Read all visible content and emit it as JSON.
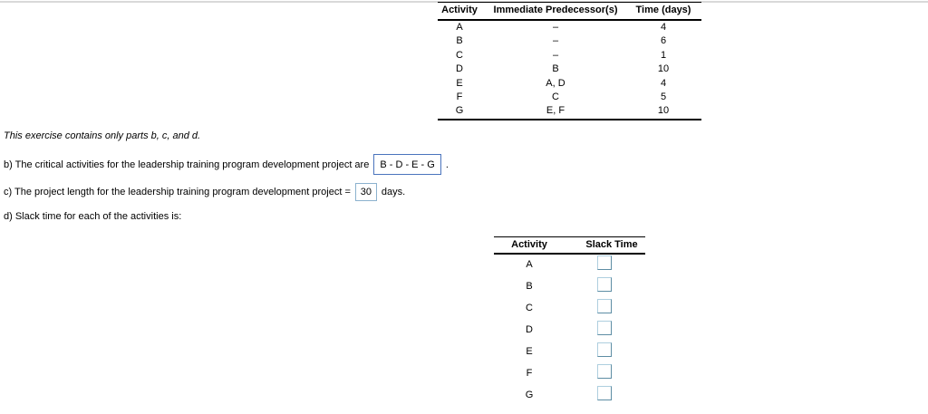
{
  "colors": {
    "page-top-line": "#d9d9d9",
    "answer-box-border": "#4a74bd",
    "value-box-border": "#8cb2ce",
    "slack-box-light": "#aecfdf",
    "slack-box-dark": "#5d8da4"
  },
  "note": {
    "text": "This exercise contains only parts b, c, and d."
  },
  "part_b": {
    "text": "b) The critical activities for the leadership training program development project are",
    "answer": "B - D - E - G",
    "suffix": "."
  },
  "part_c": {
    "text": "c) The project length for the leadership training program development project =",
    "answer": "30",
    "suffix": "days."
  },
  "part_d": {
    "text": "d) Slack time for each of the activities is:"
  },
  "predecessor_table": {
    "headers": [
      "Activity",
      "Immediate Predecessor(s)",
      "Time (days)"
    ],
    "rows": [
      {
        "activity": "A",
        "predecessors": "–",
        "time": "4"
      },
      {
        "activity": "B",
        "predecessors": "–",
        "time": "6"
      },
      {
        "activity": "C",
        "predecessors": "–",
        "time": "1"
      },
      {
        "activity": "D",
        "predecessors": "B",
        "time": "10"
      },
      {
        "activity": "E",
        "predecessors": "A, D",
        "time": "4"
      },
      {
        "activity": "F",
        "predecessors": "C",
        "time": "5"
      },
      {
        "activity": "G",
        "predecessors": "E, F",
        "time": "10"
      }
    ]
  },
  "slack_table": {
    "headers": [
      "Activity",
      "Slack Time"
    ],
    "rows": [
      {
        "activity": "A",
        "slack": ""
      },
      {
        "activity": "B",
        "slack": ""
      },
      {
        "activity": "C",
        "slack": ""
      },
      {
        "activity": "D",
        "slack": ""
      },
      {
        "activity": "E",
        "slack": ""
      },
      {
        "activity": "F",
        "slack": ""
      },
      {
        "activity": "G",
        "slack": ""
      }
    ]
  }
}
